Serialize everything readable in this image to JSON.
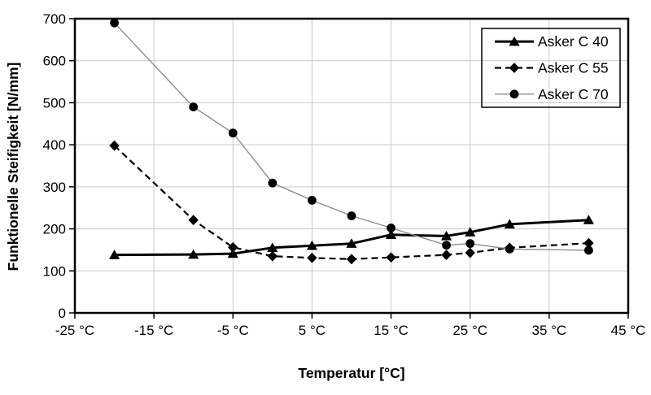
{
  "chart_data": {
    "type": "line",
    "title": "",
    "xlabel": "Temperatur [°C]",
    "ylabel": "Funktionelle Steifigkeit [N/mm]",
    "xlim": [
      -25,
      45
    ],
    "ylim": [
      0,
      700
    ],
    "x_ticks": [
      -25,
      -15,
      -5,
      5,
      15,
      25,
      35,
      45
    ],
    "x_tick_suffix": " °C",
    "y_ticks": [
      0,
      100,
      200,
      300,
      400,
      500,
      600,
      700
    ],
    "grid": true,
    "grid_color": "#c9c9c9",
    "axis_color": "#000000",
    "background": "#ffffff",
    "legend_position": "top-right",
    "x": [
      -20,
      -10,
      -5,
      0,
      5,
      10,
      15,
      22,
      25,
      30,
      40
    ],
    "series": [
      {
        "name": "Asker C 40",
        "marker": "triangle",
        "line_style": "solid-thick",
        "line_color": "#000000",
        "marker_color": "#000000",
        "values": [
          138,
          139,
          141,
          155,
          160,
          165,
          186,
          183,
          192,
          211,
          221
        ]
      },
      {
        "name": "Asker C 55",
        "marker": "diamond",
        "line_style": "dashed",
        "line_color": "#000000",
        "marker_color": "#000000",
        "values": [
          398,
          221,
          156,
          135,
          131,
          128,
          132,
          138,
          143,
          155,
          166
        ]
      },
      {
        "name": "Asker C 70",
        "marker": "circle",
        "line_style": "solid-thin",
        "line_color": "#8c8c8c",
        "marker_color": "#000000",
        "values": [
          690,
          490,
          428,
          309,
          268,
          231,
          202,
          161,
          165,
          152,
          149
        ]
      }
    ]
  }
}
